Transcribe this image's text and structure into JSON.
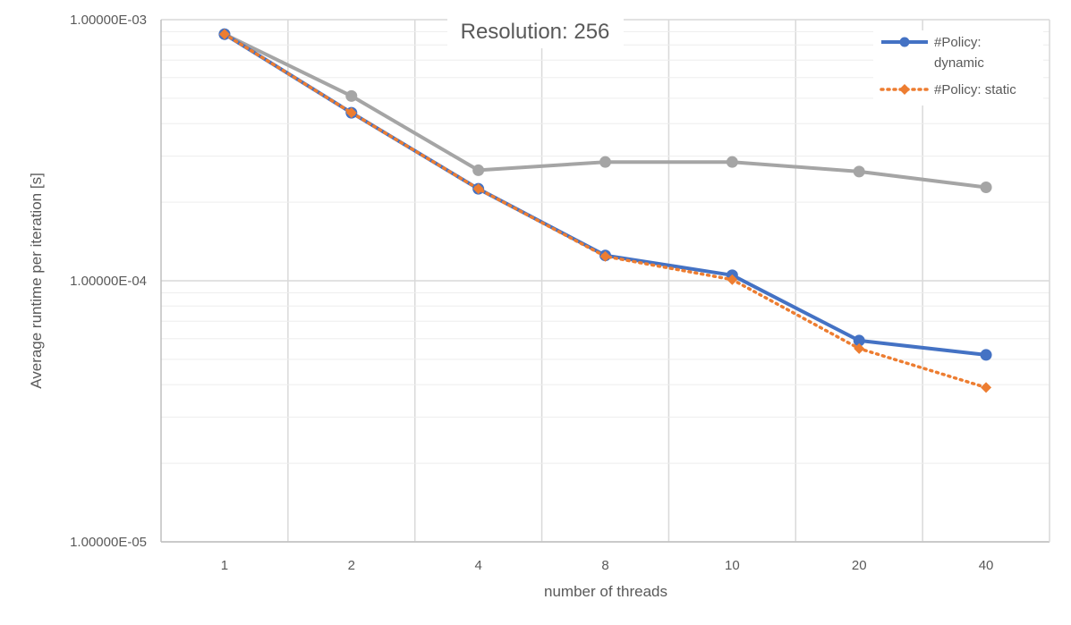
{
  "chart_data": {
    "type": "line",
    "title": "Resolution: 256",
    "xlabel": "number of threads",
    "ylabel": "Average runtime per iteration [s]",
    "y_scale": "log",
    "ylim": [
      1e-05,
      0.001
    ],
    "y_tick_labels": [
      "1.00000E-05",
      "1.00000E-04",
      "1.00000E-03"
    ],
    "categories": [
      "1",
      "2",
      "4",
      "8",
      "10",
      "20",
      "40"
    ],
    "grid": true,
    "legend_position": "top-right",
    "series": [
      {
        "name": "#Policy: dynamic",
        "color": "#4472c4",
        "line_style": "solid",
        "marker": "circle",
        "values": [
          0.00088,
          0.00044,
          0.000225,
          0.000125,
          0.000105,
          5.9e-05,
          5.2e-05
        ]
      },
      {
        "name": "#Policy: static",
        "color": "#ed7d31",
        "line_style": "dotted",
        "marker": "diamond",
        "values": [
          0.00088,
          0.00044,
          0.000225,
          0.000124,
          0.000101,
          5.5e-05,
          3.9e-05
        ]
      },
      {
        "name": "",
        "color": "#a5a5a5",
        "line_style": "solid",
        "marker": "circle",
        "values": [
          0.00088,
          0.00051,
          0.000265,
          0.000285,
          0.000285,
          0.000262,
          0.000228
        ]
      }
    ]
  }
}
